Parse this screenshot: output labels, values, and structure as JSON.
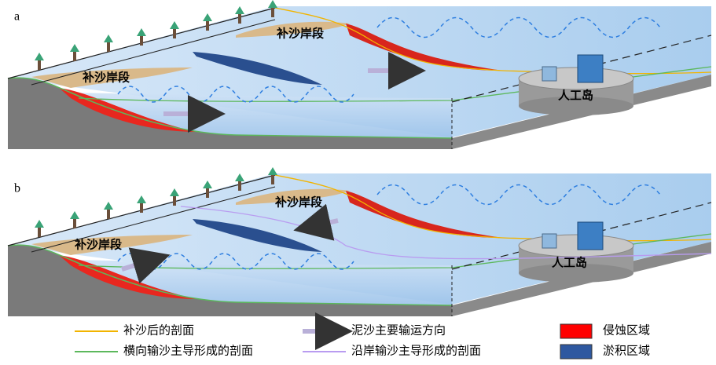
{
  "panels": [
    {
      "label": "a",
      "segments": [
        "补沙岸段",
        "补沙岸段"
      ],
      "island": "人工岛"
    },
    {
      "label": "b",
      "segments": [
        "补沙岸段",
        "补沙岸段"
      ],
      "island": "人工岛"
    }
  ],
  "legend": [
    {
      "label": "补沙后的剖面",
      "color": "#f2b400"
    },
    {
      "label": "泥沙主要输运方向",
      "color": "#b9b0d8"
    },
    {
      "label": "侵蚀区域",
      "color": "#ff0000"
    },
    {
      "label": "横向输沙主导形成的剖面",
      "color": "#5cb85c"
    },
    {
      "label": "沿岸输沙主导形成的剖面",
      "color": "#b99cf0"
    },
    {
      "label": "淤积区域",
      "color": "#2e58a0"
    }
  ]
}
